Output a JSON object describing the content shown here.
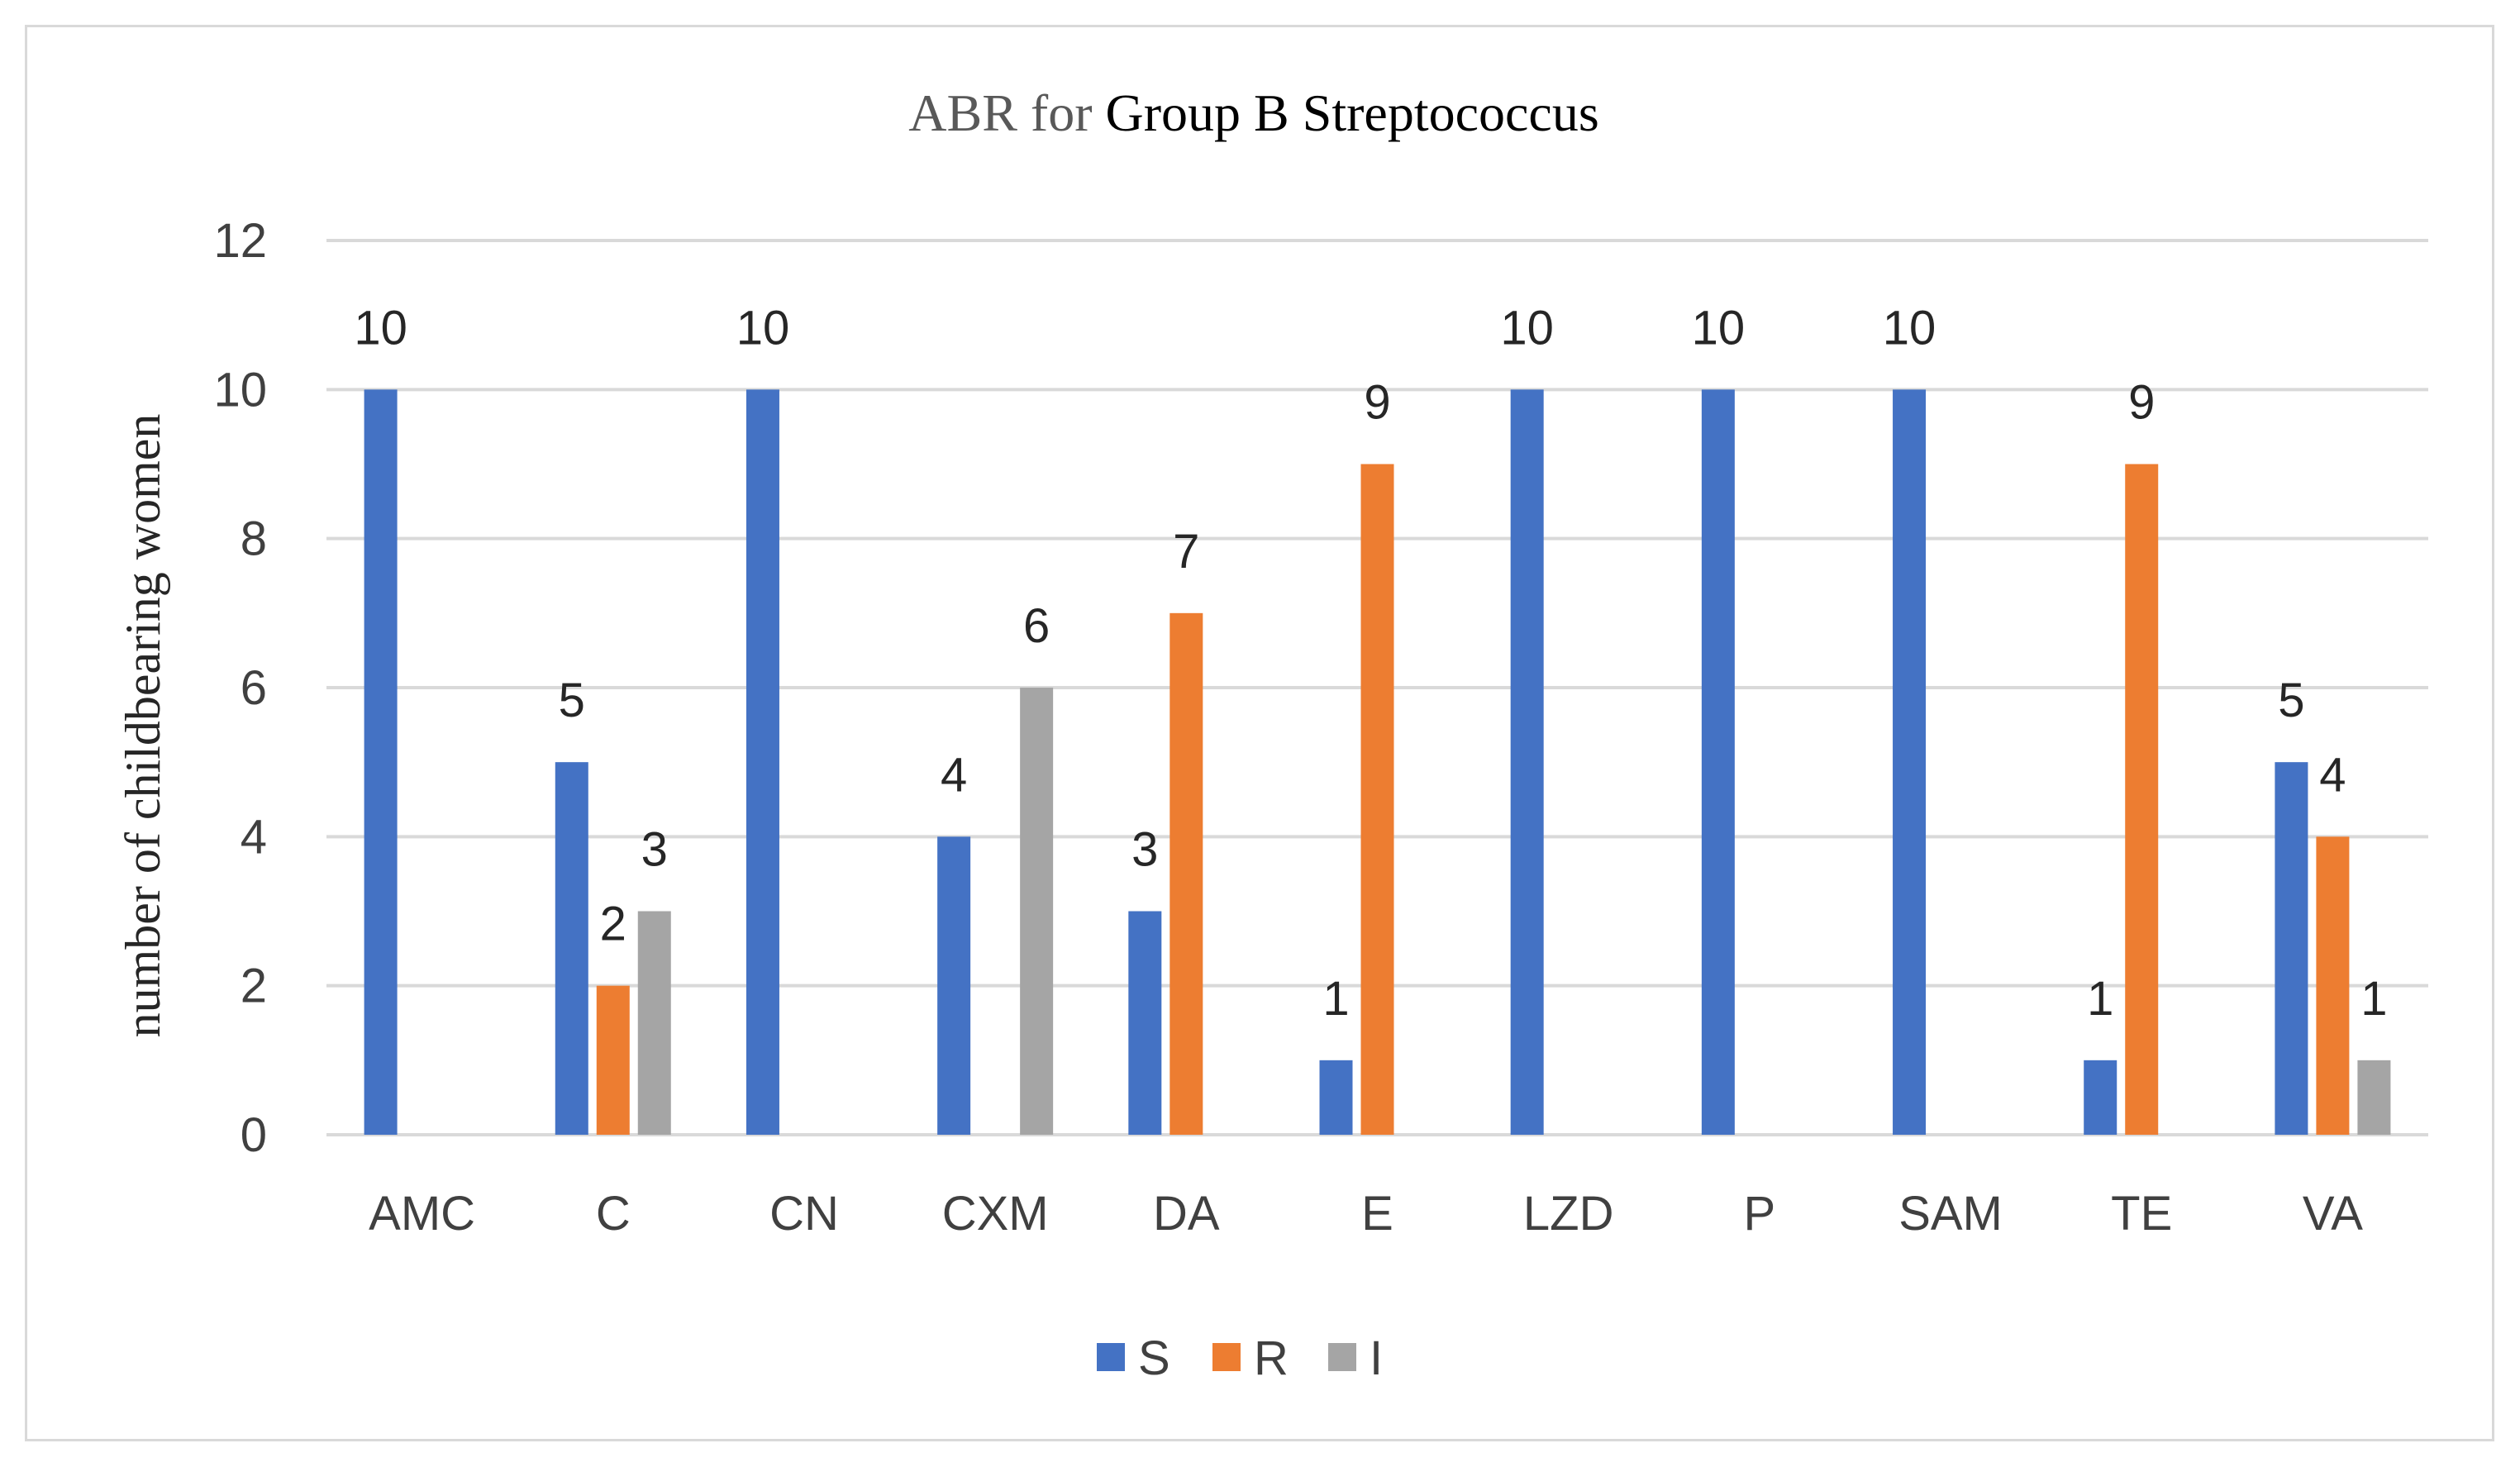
{
  "chart_data": {
    "type": "bar",
    "title_prefix": "ABR for ",
    "title_main": "Group B Streptococcus",
    "title": "ABR for Group B Streptococcus",
    "xlabel": "",
    "ylabel": "number of childbearing women",
    "ylim": [
      0,
      12
    ],
    "yticks": [
      0,
      2,
      4,
      6,
      8,
      10,
      12
    ],
    "grid": true,
    "legend_position": "bottom",
    "categories": [
      "AMC",
      "C",
      "CN",
      "CXM",
      "DA",
      "E",
      "LZD",
      "P",
      "SAM",
      "TE",
      "VA"
    ],
    "series": [
      {
        "name": "S",
        "color": "#4472c4",
        "values": [
          10,
          5,
          10,
          4,
          3,
          1,
          10,
          10,
          10,
          1,
          5
        ]
      },
      {
        "name": "R",
        "color": "#ed7d31",
        "values": [
          null,
          2,
          null,
          null,
          7,
          9,
          null,
          null,
          null,
          9,
          4
        ]
      },
      {
        "name": "I",
        "color": "#a5a5a5",
        "values": [
          null,
          3,
          null,
          6,
          null,
          null,
          null,
          null,
          null,
          null,
          1
        ]
      }
    ]
  },
  "colors": {
    "title_prefix": "#595959",
    "title_main": "#000000",
    "gridline": "#d9d9d9",
    "axis_text": "#404040"
  }
}
